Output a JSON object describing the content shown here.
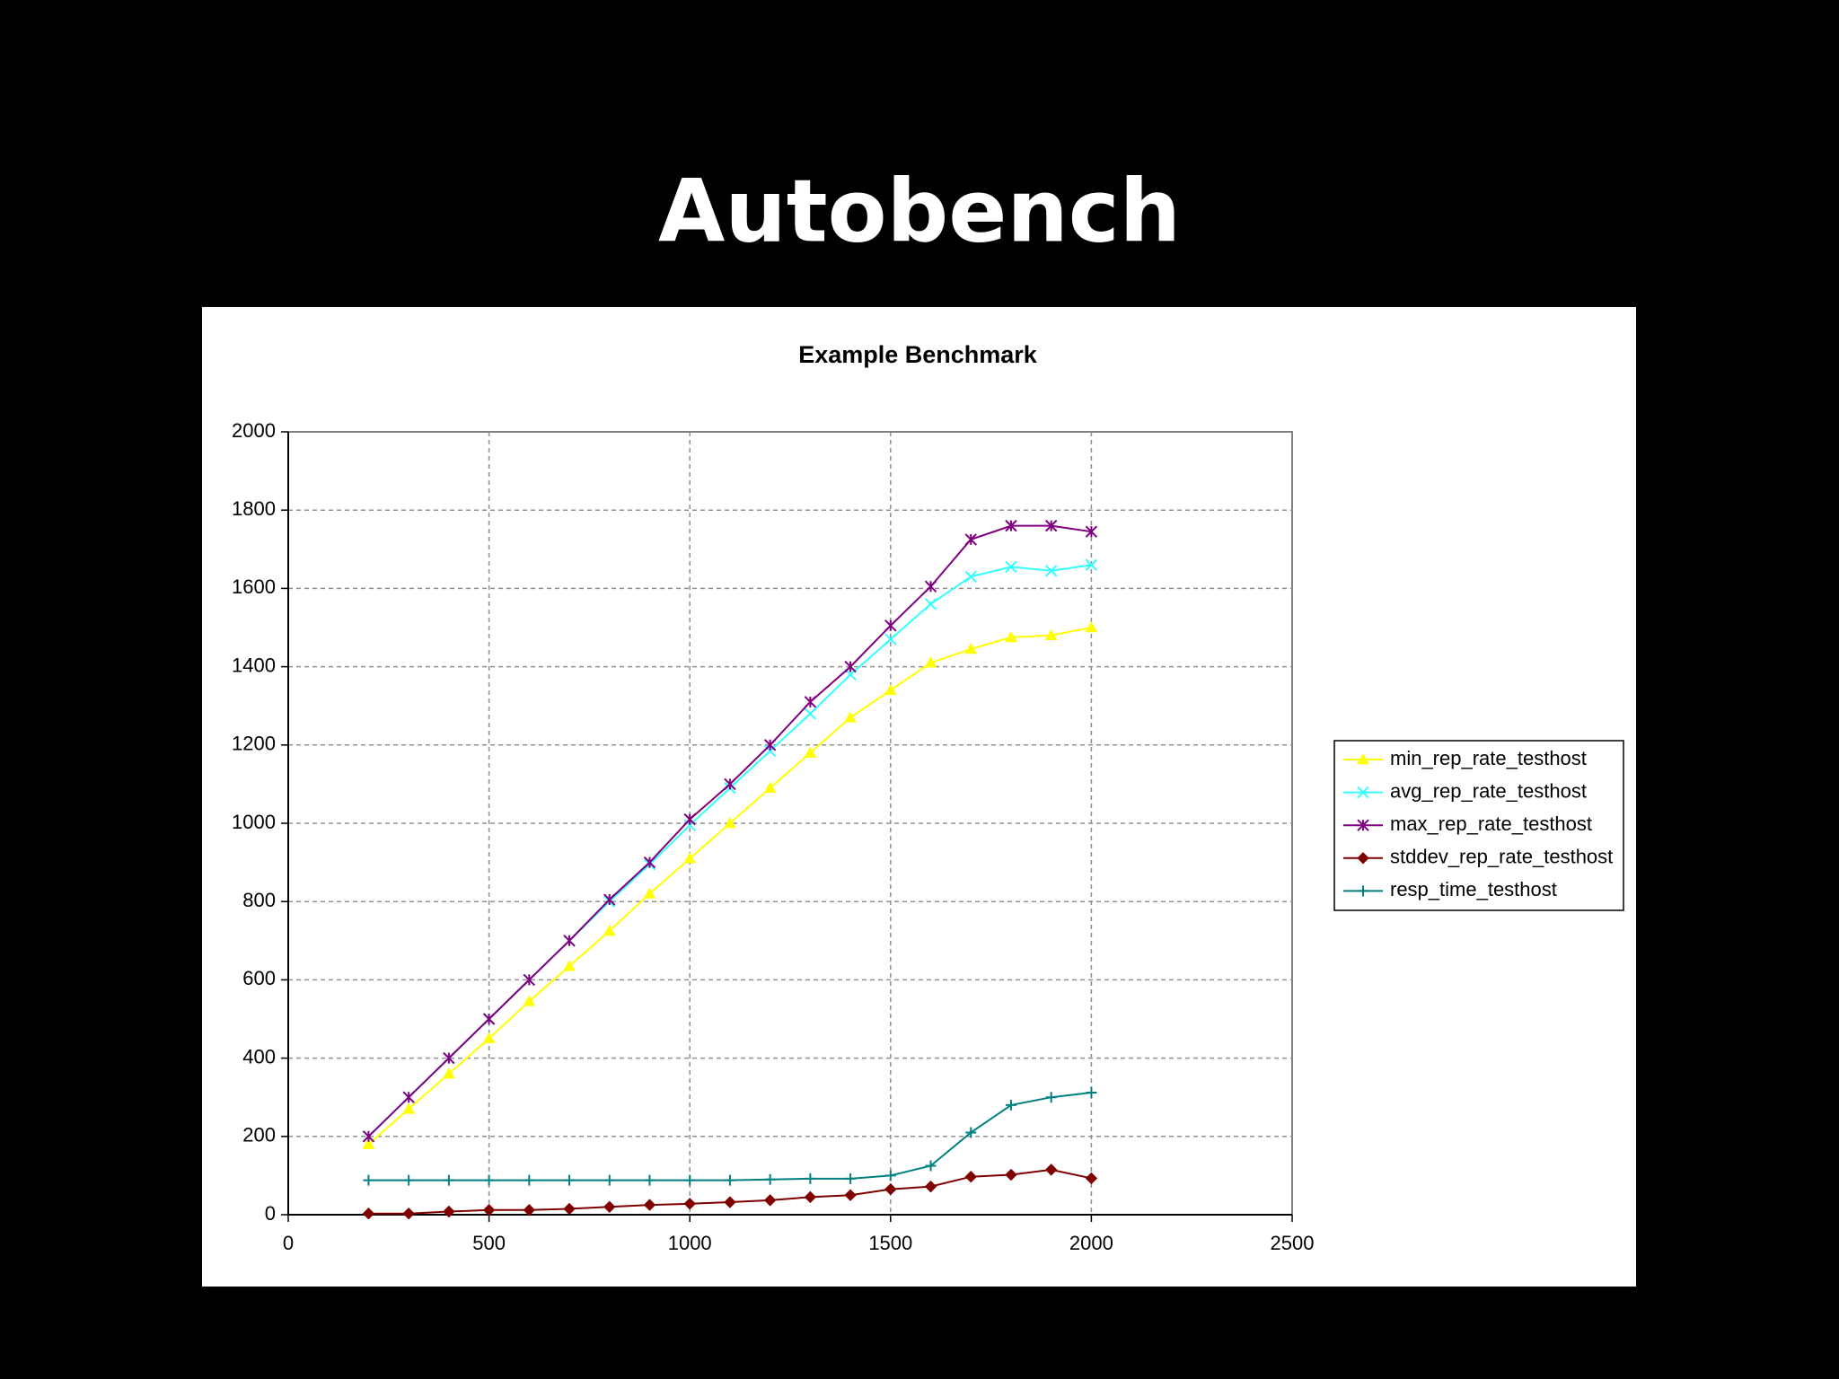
{
  "title": "Autobench",
  "chart_data": {
    "type": "line",
    "title": "Example Benchmark",
    "x": [
      200,
      300,
      400,
      500,
      600,
      700,
      800,
      900,
      1000,
      1100,
      1200,
      1300,
      1400,
      1500,
      1600,
      1700,
      1800,
      1900,
      2000
    ],
    "series": [
      {
        "name": "min_rep_rate_testhost",
        "color": "#ffff00",
        "marker": "triangle",
        "values": [
          180,
          270,
          360,
          450,
          545,
          635,
          725,
          820,
          910,
          1000,
          1090,
          1180,
          1270,
          1340,
          1410,
          1445,
          1475,
          1480,
          1500
        ]
      },
      {
        "name": "avg_rep_rate_testhost",
        "color": "#33ffff",
        "marker": "x",
        "values": [
          200,
          300,
          400,
          500,
          600,
          700,
          800,
          895,
          995,
          1090,
          1185,
          1280,
          1380,
          1470,
          1560,
          1630,
          1655,
          1645,
          1660
        ]
      },
      {
        "name": "max_rep_rate_testhost",
        "color": "#800080",
        "marker": "asterisk",
        "values": [
          200,
          300,
          400,
          500,
          600,
          700,
          805,
          900,
          1010,
          1100,
          1200,
          1310,
          1400,
          1505,
          1605,
          1725,
          1760,
          1760,
          1745
        ]
      },
      {
        "name": "stddev_rep_rate_testhost",
        "color": "#800000",
        "marker": "diamond",
        "values": [
          3,
          3,
          8,
          12,
          12,
          15,
          20,
          25,
          28,
          32,
          37,
          45,
          50,
          65,
          72,
          97,
          102,
          115,
          93
        ]
      },
      {
        "name": "resp_time_testhost",
        "color": "#008080",
        "marker": "plus",
        "values": [
          88,
          88,
          88,
          88,
          88,
          88,
          88,
          88,
          88,
          88,
          90,
          92,
          92,
          100,
          125,
          210,
          280,
          300,
          312
        ]
      }
    ],
    "xlim": [
      0,
      2500
    ],
    "xticks": [
      0,
      500,
      1000,
      1500,
      2000,
      2500
    ],
    "ylim": [
      0,
      2000
    ],
    "yticks": [
      0,
      200,
      400,
      600,
      800,
      1000,
      1200,
      1400,
      1600,
      1800,
      2000
    ],
    "grid": true,
    "legend": "right"
  }
}
